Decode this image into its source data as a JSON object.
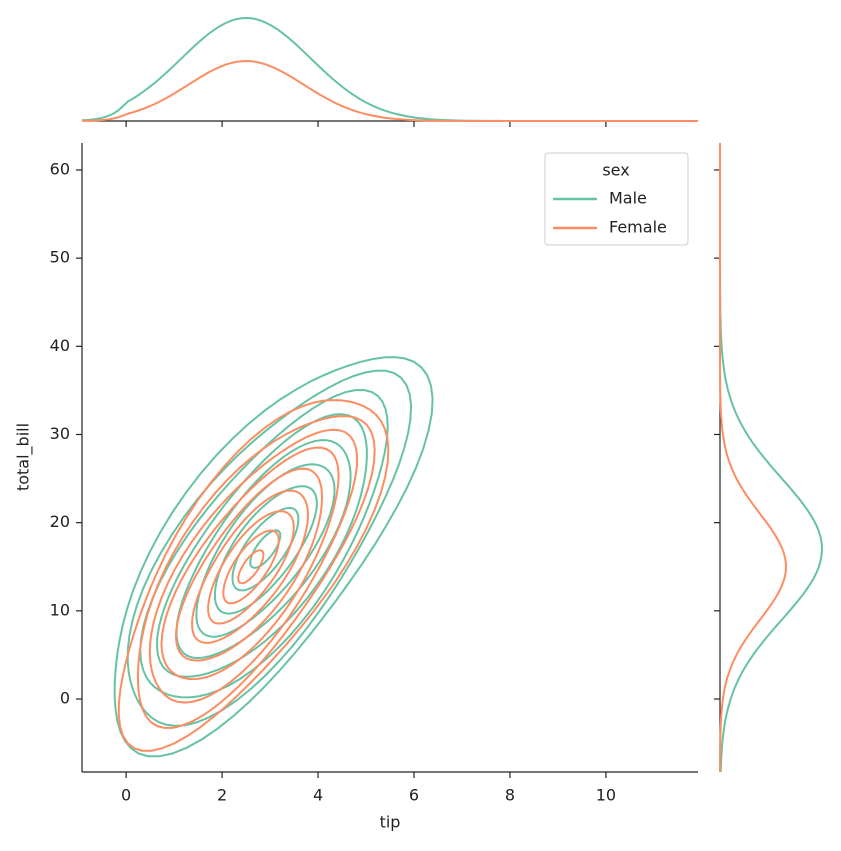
{
  "chart_data": {
    "type": "kde-joint",
    "x_label": "tip",
    "y_label": "total_bill",
    "xlim": [
      -0.92,
      11.92
    ],
    "ylim": [
      -8.28,
      63.06
    ],
    "xticks": [
      0,
      2,
      4,
      6,
      8,
      10
    ],
    "yticks": [
      0,
      10,
      20,
      30,
      40,
      50,
      60
    ],
    "legend_title": "sex",
    "legend_loc": "upper right",
    "series": [
      {
        "name": "Male",
        "color": "#66c2a5"
      },
      {
        "name": "Female",
        "color": "#fc8d62"
      }
    ]
  }
}
